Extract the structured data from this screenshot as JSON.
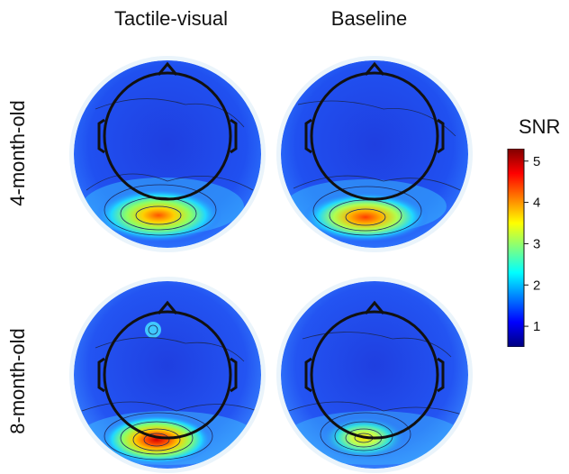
{
  "columns": {
    "tactile_visual": "Tactile-visual",
    "baseline": "Baseline"
  },
  "rows": {
    "four_month": "4-month-old",
    "eight_month": "8-month-old"
  },
  "colorbar": {
    "title": "SNR",
    "ticks": [
      "5",
      "4",
      "3",
      "2",
      "1"
    ],
    "tick_values": [
      5,
      4,
      3,
      2,
      1
    ],
    "min": 0.5,
    "max": 5.3,
    "colors": [
      "#00007f",
      "#0000ff",
      "#007fff",
      "#00ffff",
      "#7fff7f",
      "#ffff00",
      "#ff7f00",
      "#ff0000",
      "#7f0000"
    ]
  },
  "maps": [
    {
      "id": "4-tactile",
      "row": "4-month-old",
      "column": "Tactile-visual",
      "peak_snr": 4.5,
      "extra_spot": false
    },
    {
      "id": "4-baseline",
      "row": "4-month-old",
      "column": "Baseline",
      "peak_snr": 4.6,
      "extra_spot": false
    },
    {
      "id": "8-tactile",
      "row": "8-month-old",
      "column": "Tactile-visual",
      "peak_snr": 5.2,
      "extra_spot": true
    },
    {
      "id": "8-baseline",
      "row": "8-month-old",
      "column": "Baseline",
      "peak_snr": 3.6,
      "extra_spot": false
    }
  ]
}
